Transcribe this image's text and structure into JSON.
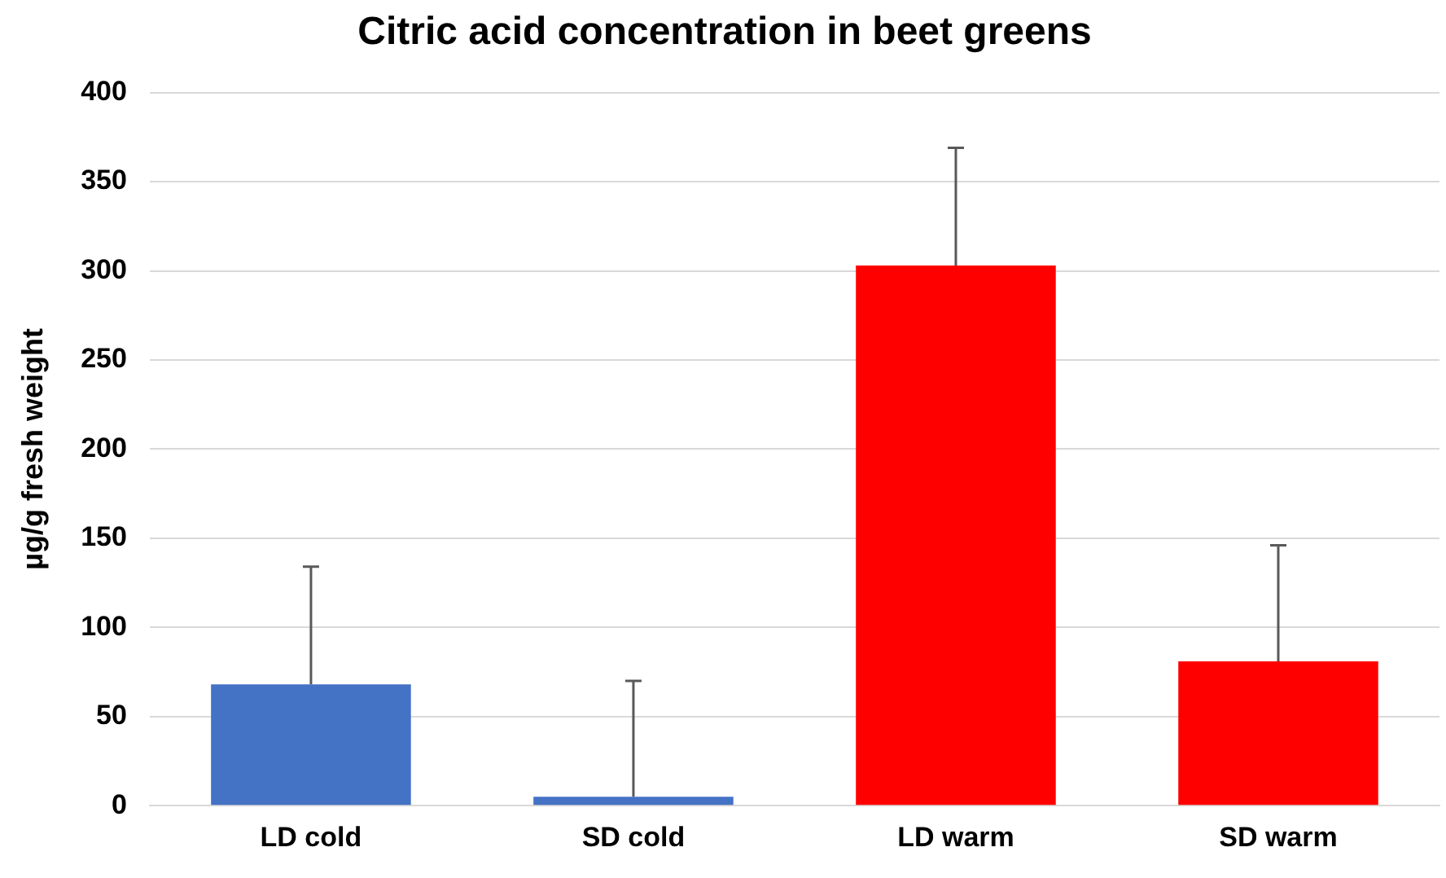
{
  "chart_data": {
    "type": "bar",
    "title": "Citric acid concentration in beet greens",
    "ylabel": "µg/g fresh weight",
    "categories": [
      "LD cold",
      "SD cold",
      "LD warm",
      "SD warm"
    ],
    "values": [
      68,
      5,
      303,
      81
    ],
    "colors": [
      "#4472c4",
      "#4472c4",
      "#ff0000",
      "#ff0000"
    ],
    "errors": [
      [
        68,
        134
      ],
      [
        5,
        70
      ],
      [
        303,
        369
      ],
      [
        81,
        146
      ]
    ],
    "ylim": [
      0,
      400
    ],
    "yticks": [
      0,
      50,
      100,
      150,
      200,
      250,
      300,
      350,
      400
    ],
    "grid": "y",
    "legend": false
  }
}
